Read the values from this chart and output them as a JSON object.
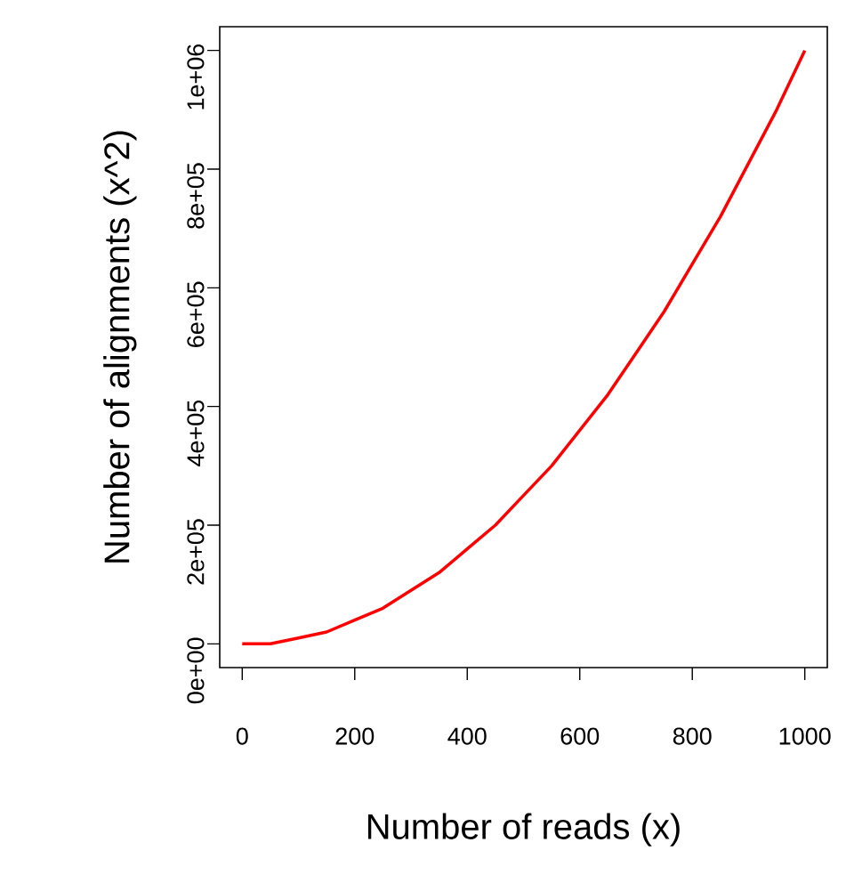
{
  "chart_data": {
    "type": "line",
    "xlabel": "Number of reads (x)",
    "ylabel": "Number of alignments (x^2)",
    "xlim": [
      -40,
      1040
    ],
    "ylim": [
      -40000,
      1040000
    ],
    "xticks": [
      0,
      200,
      400,
      600,
      800,
      1000
    ],
    "yticks": [
      {
        "value": 0,
        "label": "0e+00"
      },
      {
        "value": 200000,
        "label": "2e+05"
      },
      {
        "value": 400000,
        "label": "4e+05"
      },
      {
        "value": 600000,
        "label": "6e+05"
      },
      {
        "value": 800000,
        "label": "8e+05"
      },
      {
        "value": 1000000,
        "label": "1e+06"
      }
    ],
    "x": [
      0,
      50,
      100,
      150,
      200,
      250,
      300,
      350,
      400,
      450,
      500,
      550,
      600,
      650,
      700,
      750,
      800,
      850,
      900,
      950,
      1000
    ],
    "series": [
      {
        "color": "#ff0000",
        "values": [
          0,
          0,
          10000,
          20000,
          40000,
          60000,
          90000,
          120000,
          160000,
          200000,
          250000,
          300000,
          360000,
          420000,
          490000,
          560000,
          640000,
          720000,
          810000,
          900000,
          1000000
        ]
      }
    ]
  }
}
